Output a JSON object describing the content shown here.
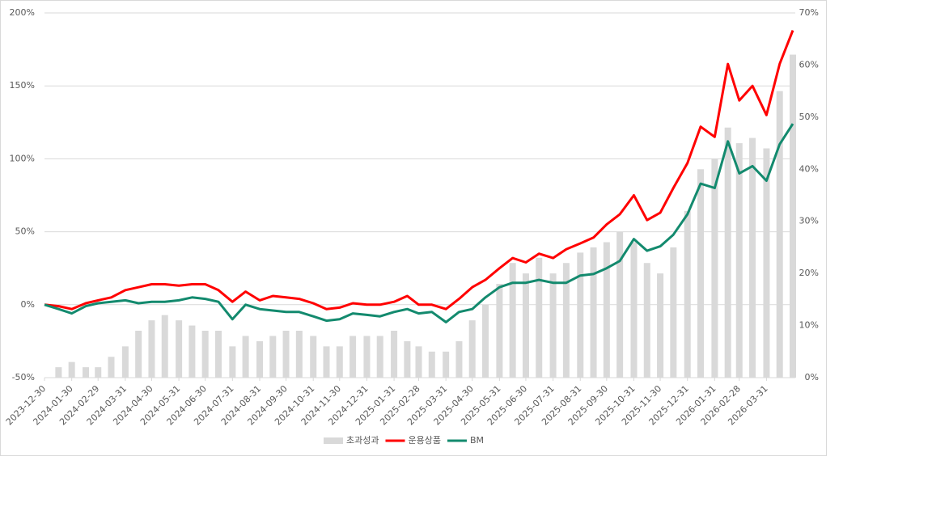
{
  "chart_data": {
    "type": "combo",
    "x": [
      "2023-12-30",
      "2024-01-15",
      "2024-01-30",
      "2024-02-15",
      "2024-02-29",
      "2024-03-15",
      "2024-03-31",
      "2024-04-15",
      "2024-04-30",
      "2024-05-15",
      "2024-05-31",
      "2024-06-15",
      "2024-06-30",
      "2024-07-15",
      "2024-07-31",
      "2024-08-15",
      "2024-08-31",
      "2024-09-15",
      "2024-09-30",
      "2024-10-15",
      "2024-10-31",
      "2024-11-15",
      "2024-11-30",
      "2024-12-15",
      "2024-12-31",
      "2025-01-15",
      "2025-01-31",
      "2025-02-15",
      "2025-02-28",
      "2025-03-15",
      "2025-03-31",
      "2025-04-15",
      "2025-04-30",
      "2025-05-15",
      "2025-05-31",
      "2025-06-15",
      "2025-06-30",
      "2025-07-15",
      "2025-07-31",
      "2025-08-15",
      "2025-08-31",
      "2025-09-15",
      "2025-09-30",
      "2025-10-15",
      "2025-10-31",
      "2025-11-15",
      "2025-11-30",
      "2025-12-15",
      "2025-12-31",
      "2026-01-15",
      "2026-01-31",
      "2026-02-15",
      "2026-02-28",
      "2026-03-15",
      "2026-03-31",
      "2026-04-15",
      "2026-04-30"
    ],
    "series": [
      {
        "name": "초과성과",
        "type": "bar",
        "axis": "y2",
        "color": "#d9d9d9",
        "values": [
          0,
          2,
          3,
          2,
          2,
          4,
          6,
          9,
          11,
          12,
          11,
          10,
          9,
          9,
          6,
          8,
          7,
          8,
          9,
          9,
          8,
          6,
          6,
          8,
          8,
          8,
          9,
          7,
          6,
          5,
          5,
          7,
          11,
          14,
          18,
          22,
          20,
          23,
          20,
          22,
          24,
          25,
          26,
          28,
          26,
          22,
          20,
          25,
          32,
          40,
          42,
          48,
          45,
          46,
          44,
          55,
          62
        ]
      },
      {
        "name": "운용상품",
        "type": "line",
        "color": "#ff0000",
        "values": [
          0,
          -1,
          -3,
          1,
          3,
          5,
          10,
          12,
          14,
          14,
          13,
          14,
          14,
          10,
          2,
          9,
          3,
          6,
          5,
          4,
          1,
          -3,
          -2,
          1,
          0,
          0,
          2,
          6,
          0,
          0,
          -3,
          4,
          12,
          17,
          25,
          32,
          29,
          35,
          32,
          38,
          42,
          46,
          55,
          62,
          75,
          58,
          63,
          80,
          97,
          122,
          115,
          165,
          140,
          150,
          130,
          165,
          188
        ]
      },
      {
        "name": "BM",
        "type": "line",
        "color": "#138a6e",
        "values": [
          0,
          -3,
          -6,
          -1,
          1,
          2,
          3,
          1,
          2,
          2,
          3,
          5,
          4,
          2,
          -10,
          0,
          -3,
          -4,
          -5,
          -5,
          -8,
          -11,
          -10,
          -6,
          -7,
          -8,
          -5,
          -3,
          -6,
          -5,
          -12,
          -5,
          -3,
          5,
          12,
          15,
          15,
          17,
          15,
          15,
          20,
          21,
          25,
          30,
          45,
          37,
          40,
          48,
          62,
          83,
          80,
          112,
          90,
          95,
          85,
          110,
          124
        ]
      }
    ],
    "xlim": [
      "2023-12-30",
      "2026-04-30"
    ],
    "xticks": [
      "2023-12-30",
      "2024-01-30",
      "2024-02-29",
      "2024-03-31",
      "2024-04-30",
      "2024-05-31",
      "2024-06-30",
      "2024-07-31",
      "2024-08-31",
      "2024-09-30",
      "2024-10-31",
      "2024-11-30",
      "2024-12-31",
      "2025-01-31",
      "2025-02-28",
      "2025-03-31",
      "2025-04-30",
      "2025-05-31",
      "2025-06-30",
      "2025-07-31",
      "2025-08-31",
      "2025-09-30",
      "2025-10-31",
      "2025-11-30",
      "2025-12-31",
      "2026-01-31",
      "2026-02-28",
      "2026-03-31"
    ],
    "ylim": [
      -50,
      200
    ],
    "yticks": [
      {
        "value": -50,
        "label": "-50%"
      },
      {
        "value": 0,
        "label": "0%"
      },
      {
        "value": 50,
        "label": "50%"
      },
      {
        "value": 100,
        "label": "100%"
      },
      {
        "value": 150,
        "label": "150%"
      },
      {
        "value": 200,
        "label": "200%"
      }
    ],
    "y2lim": [
      0,
      70
    ],
    "y2ticks": [
      {
        "value": 0,
        "label": "0%"
      },
      {
        "value": 10,
        "label": "10%"
      },
      {
        "value": 20,
        "label": "20%"
      },
      {
        "value": 30,
        "label": "30%"
      },
      {
        "value": 40,
        "label": "40%"
      },
      {
        "value": 50,
        "label": "50%"
      },
      {
        "value": 60,
        "label": "60%"
      },
      {
        "value": 70,
        "label": "70%"
      }
    ],
    "grid": true,
    "legend": "bottom"
  }
}
